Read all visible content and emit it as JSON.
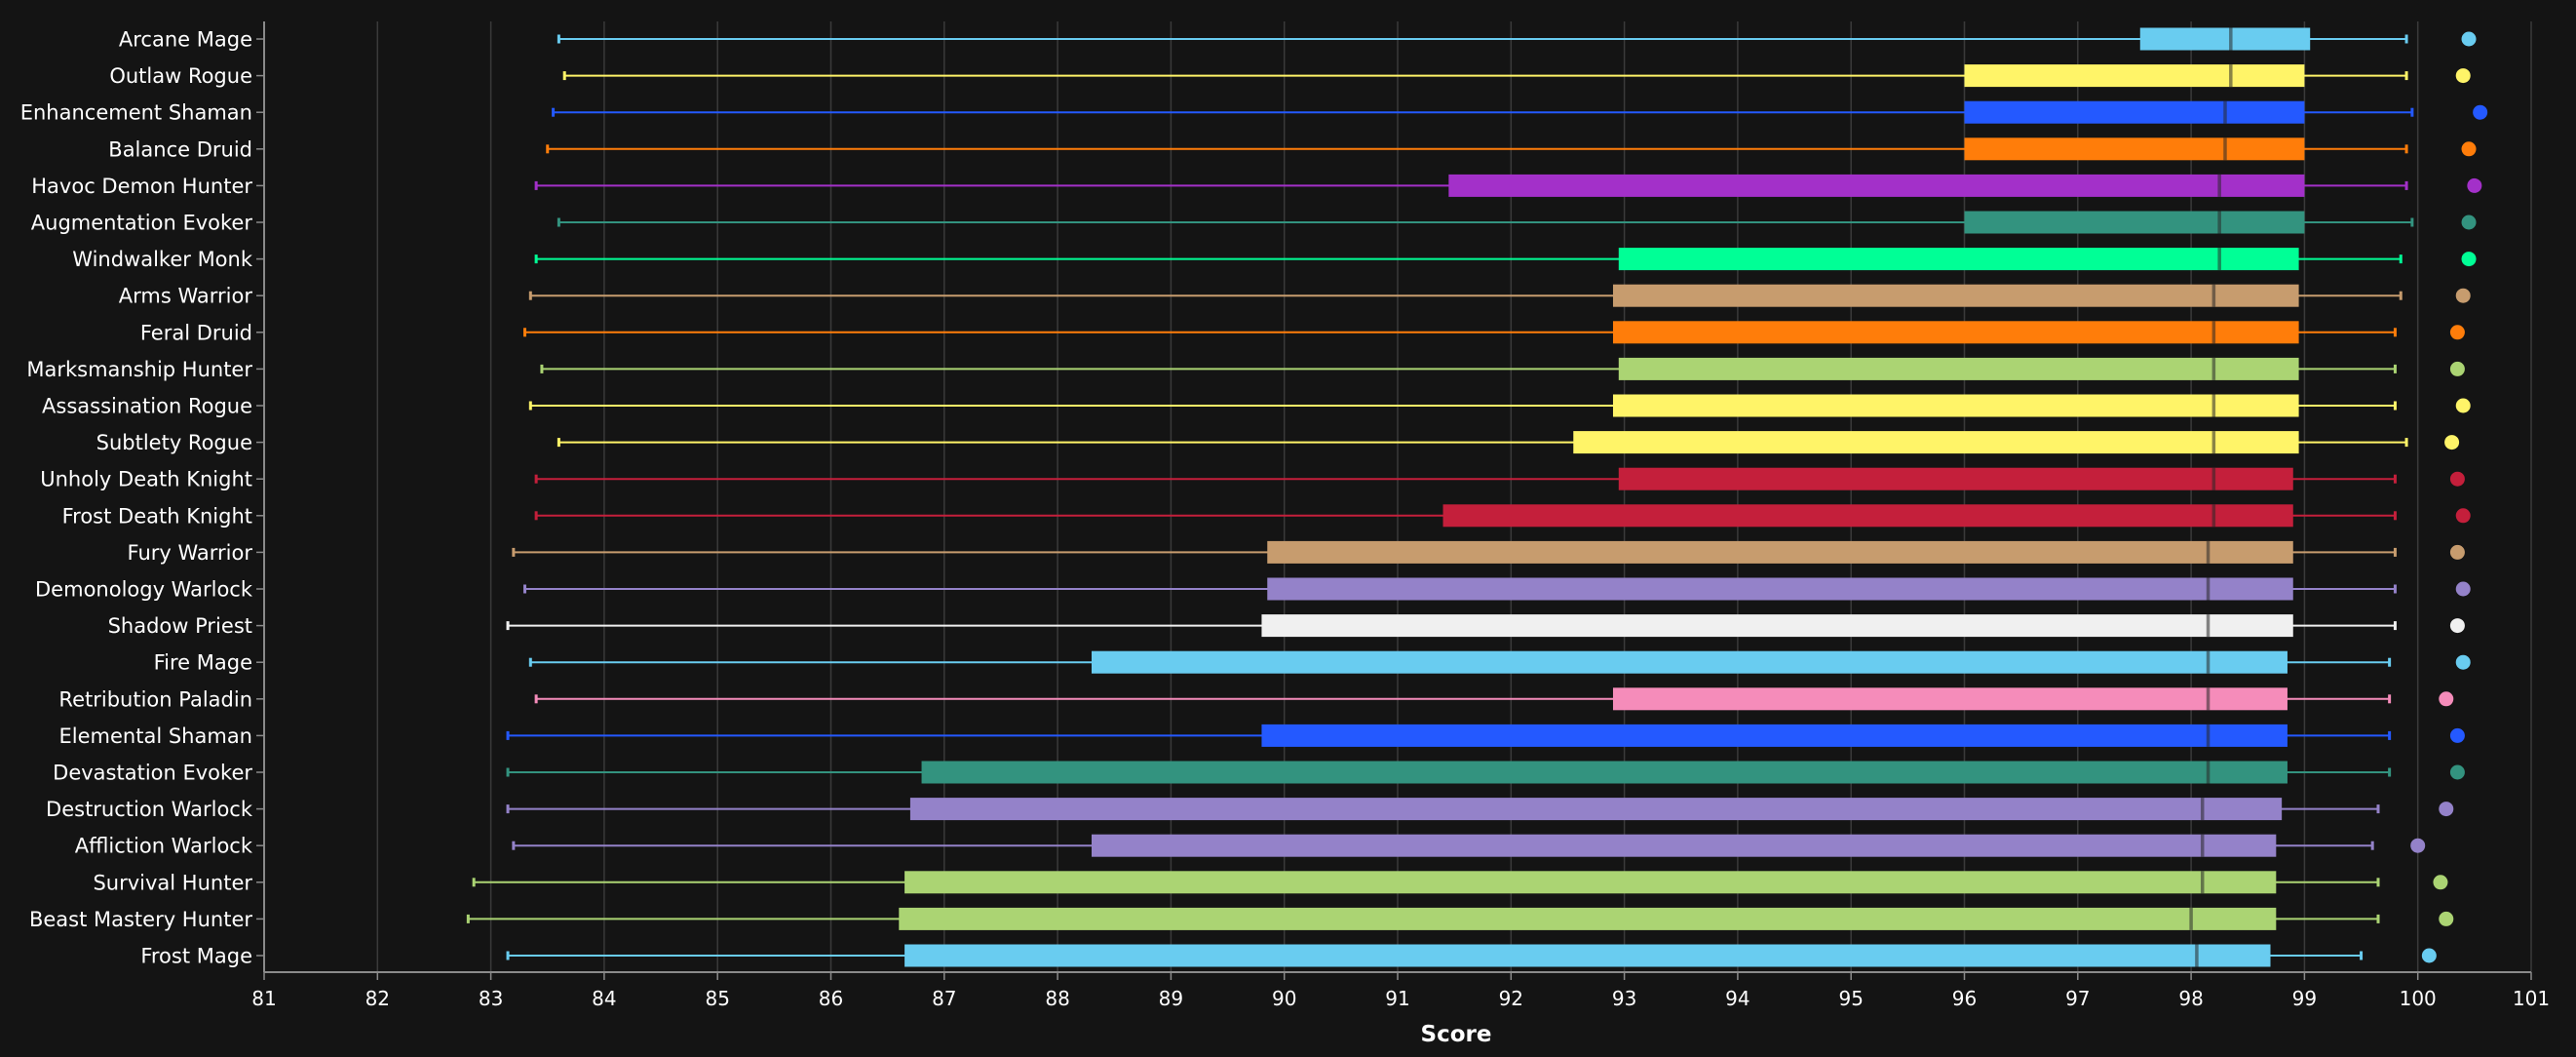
{
  "chart_data": {
    "type": "boxplot",
    "xlabel": "Score",
    "xlim": [
      81,
      101
    ],
    "xticks": [
      81,
      82,
      83,
      84,
      85,
      86,
      87,
      88,
      89,
      90,
      91,
      92,
      93,
      94,
      95,
      96,
      97,
      98,
      99,
      100,
      101
    ],
    "grid": true,
    "legend": "none",
    "series": [
      {
        "name": "Arcane Mage",
        "color": "#69ccf0",
        "min": 83.6,
        "q1": 97.55,
        "median": 98.35,
        "q3": 99.05,
        "max": 99.9,
        "point": 100.45
      },
      {
        "name": "Outlaw Rogue",
        "color": "#fff468",
        "min": 83.65,
        "q1": 96.0,
        "median": 98.35,
        "q3": 99.0,
        "max": 99.9,
        "point": 100.4
      },
      {
        "name": "Enhancement Shaman",
        "color": "#2459ff",
        "min": 83.55,
        "q1": 96.0,
        "median": 98.3,
        "q3": 99.0,
        "max": 99.95,
        "point": 100.55
      },
      {
        "name": "Balance Druid",
        "color": "#ff7d0a",
        "min": 83.5,
        "q1": 96.0,
        "median": 98.3,
        "q3": 99.0,
        "max": 99.9,
        "point": 100.45
      },
      {
        "name": "Havoc Demon Hunter",
        "color": "#a330c9",
        "min": 83.4,
        "q1": 91.45,
        "median": 98.25,
        "q3": 99.0,
        "max": 99.9,
        "point": 100.5
      },
      {
        "name": "Augmentation Evoker",
        "color": "#33937f",
        "min": 83.6,
        "q1": 96.0,
        "median": 98.25,
        "q3": 99.0,
        "max": 99.95,
        "point": 100.45
      },
      {
        "name": "Windwalker Monk",
        "color": "#00ff96",
        "min": 83.4,
        "q1": 92.95,
        "median": 98.25,
        "q3": 98.95,
        "max": 99.85,
        "point": 100.45
      },
      {
        "name": "Arms Warrior",
        "color": "#c79c6e",
        "min": 83.35,
        "q1": 92.9,
        "median": 98.2,
        "q3": 98.95,
        "max": 99.85,
        "point": 100.4
      },
      {
        "name": "Feral Druid",
        "color": "#ff7d0a",
        "min": 83.3,
        "q1": 92.9,
        "median": 98.2,
        "q3": 98.95,
        "max": 99.8,
        "point": 100.35
      },
      {
        "name": "Marksmanship Hunter",
        "color": "#abd473",
        "min": 83.45,
        "q1": 92.95,
        "median": 98.2,
        "q3": 98.95,
        "max": 99.8,
        "point": 100.35
      },
      {
        "name": "Assassination Rogue",
        "color": "#fff468",
        "min": 83.35,
        "q1": 92.9,
        "median": 98.2,
        "q3": 98.95,
        "max": 99.8,
        "point": 100.4
      },
      {
        "name": "Subtlety Rogue",
        "color": "#fff468",
        "min": 83.6,
        "q1": 92.55,
        "median": 98.2,
        "q3": 98.95,
        "max": 99.9,
        "point": 100.3
      },
      {
        "name": "Unholy Death Knight",
        "color": "#c41f3b",
        "min": 83.4,
        "q1": 92.95,
        "median": 98.2,
        "q3": 98.9,
        "max": 99.8,
        "point": 100.35
      },
      {
        "name": "Frost Death Knight",
        "color": "#c41f3b",
        "min": 83.4,
        "q1": 91.4,
        "median": 98.2,
        "q3": 98.9,
        "max": 99.8,
        "point": 100.4
      },
      {
        "name": "Fury Warrior",
        "color": "#c79c6e",
        "min": 83.2,
        "q1": 89.85,
        "median": 98.15,
        "q3": 98.9,
        "max": 99.8,
        "point": 100.35
      },
      {
        "name": "Demonology Warlock",
        "color": "#9482c9",
        "min": 83.3,
        "q1": 89.85,
        "median": 98.15,
        "q3": 98.9,
        "max": 99.8,
        "point": 100.4
      },
      {
        "name": "Shadow Priest",
        "color": "#f0f0f0",
        "min": 83.15,
        "q1": 89.8,
        "median": 98.15,
        "q3": 98.9,
        "max": 99.8,
        "point": 100.35
      },
      {
        "name": "Fire Mage",
        "color": "#69ccf0",
        "min": 83.35,
        "q1": 88.3,
        "median": 98.15,
        "q3": 98.85,
        "max": 99.75,
        "point": 100.4
      },
      {
        "name": "Retribution Paladin",
        "color": "#f58cba",
        "min": 83.4,
        "q1": 92.9,
        "median": 98.15,
        "q3": 98.85,
        "max": 99.75,
        "point": 100.25
      },
      {
        "name": "Elemental Shaman",
        "color": "#2459ff",
        "min": 83.15,
        "q1": 89.8,
        "median": 98.15,
        "q3": 98.85,
        "max": 99.75,
        "point": 100.35
      },
      {
        "name": "Devastation Evoker",
        "color": "#33937f",
        "min": 83.15,
        "q1": 86.8,
        "median": 98.15,
        "q3": 98.85,
        "max": 99.75,
        "point": 100.35
      },
      {
        "name": "Destruction Warlock",
        "color": "#9482c9",
        "min": 83.15,
        "q1": 86.7,
        "median": 98.1,
        "q3": 98.8,
        "max": 99.65,
        "point": 100.25
      },
      {
        "name": "Affliction Warlock",
        "color": "#9482c9",
        "min": 83.2,
        "q1": 88.3,
        "median": 98.1,
        "q3": 98.75,
        "max": 99.6,
        "point": 100.0
      },
      {
        "name": "Survival Hunter",
        "color": "#abd473",
        "min": 82.85,
        "q1": 86.65,
        "median": 98.1,
        "q3": 98.75,
        "max": 99.65,
        "point": 100.2
      },
      {
        "name": "Beast Mastery Hunter",
        "color": "#abd473",
        "min": 82.8,
        "q1": 86.6,
        "median": 98.0,
        "q3": 98.75,
        "max": 99.65,
        "point": 100.25
      },
      {
        "name": "Frost Mage",
        "color": "#69ccf0",
        "min": 83.15,
        "q1": 86.65,
        "median": 98.05,
        "q3": 98.7,
        "max": 99.5,
        "point": 100.1
      }
    ]
  }
}
